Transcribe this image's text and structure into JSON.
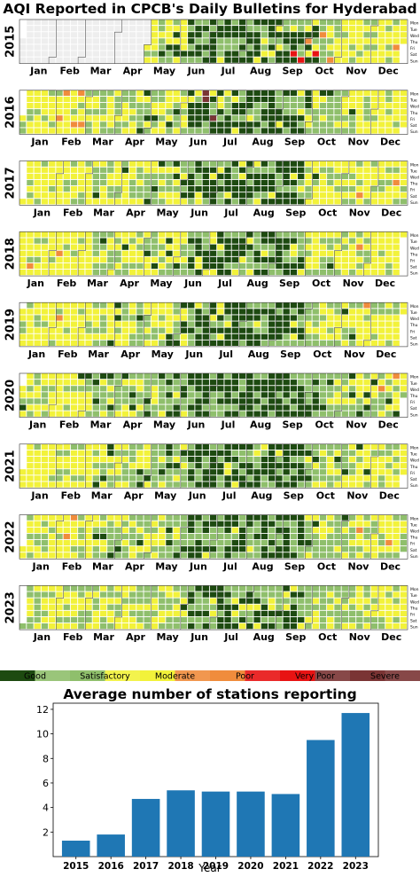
{
  "heatmap": {
    "title": "AQI Reported in CPCB's Daily Bulletins for Hyderabad",
    "years": [
      "2015",
      "2016",
      "2017",
      "2018",
      "2019",
      "2020",
      "2021",
      "2022",
      "2023"
    ],
    "months": [
      "Jan",
      "Feb",
      "Mar",
      "Apr",
      "May",
      "Jun",
      "Jul",
      "Aug",
      "Sep",
      "Oct",
      "Nov",
      "Dec"
    ],
    "weekdays": [
      "Mon",
      "Tue",
      "Wed",
      "Thu",
      "Fri",
      "Sat",
      "Sun"
    ],
    "categories": [
      {
        "label": "Good",
        "color": "#1d4a10"
      },
      {
        "label": "Satisfactory",
        "color": "#8fbf6c"
      },
      {
        "label": "Moderate",
        "color": "#f2f23a"
      },
      {
        "label": "Poor",
        "color": "#f08c3c"
      },
      {
        "label": "Very Poor",
        "color": "#e81313"
      },
      {
        "label": "Severe",
        "color": "#7a3434"
      }
    ],
    "no_data_color": "#eeeeee"
  },
  "chart_data": {
    "type": "bar",
    "title": "Average number of stations reporting",
    "xlabel": "Year",
    "ylabel": "",
    "categories": [
      "2015",
      "2016",
      "2017",
      "2018",
      "2019",
      "2020",
      "2021",
      "2022",
      "2023"
    ],
    "values": [
      1.3,
      1.8,
      4.7,
      5.4,
      5.3,
      5.3,
      5.1,
      9.5,
      11.7
    ],
    "ylim": [
      0,
      12.5
    ],
    "yticks": [
      2,
      4,
      6,
      8,
      10,
      12
    ],
    "bar_color": "#1f77b4"
  }
}
